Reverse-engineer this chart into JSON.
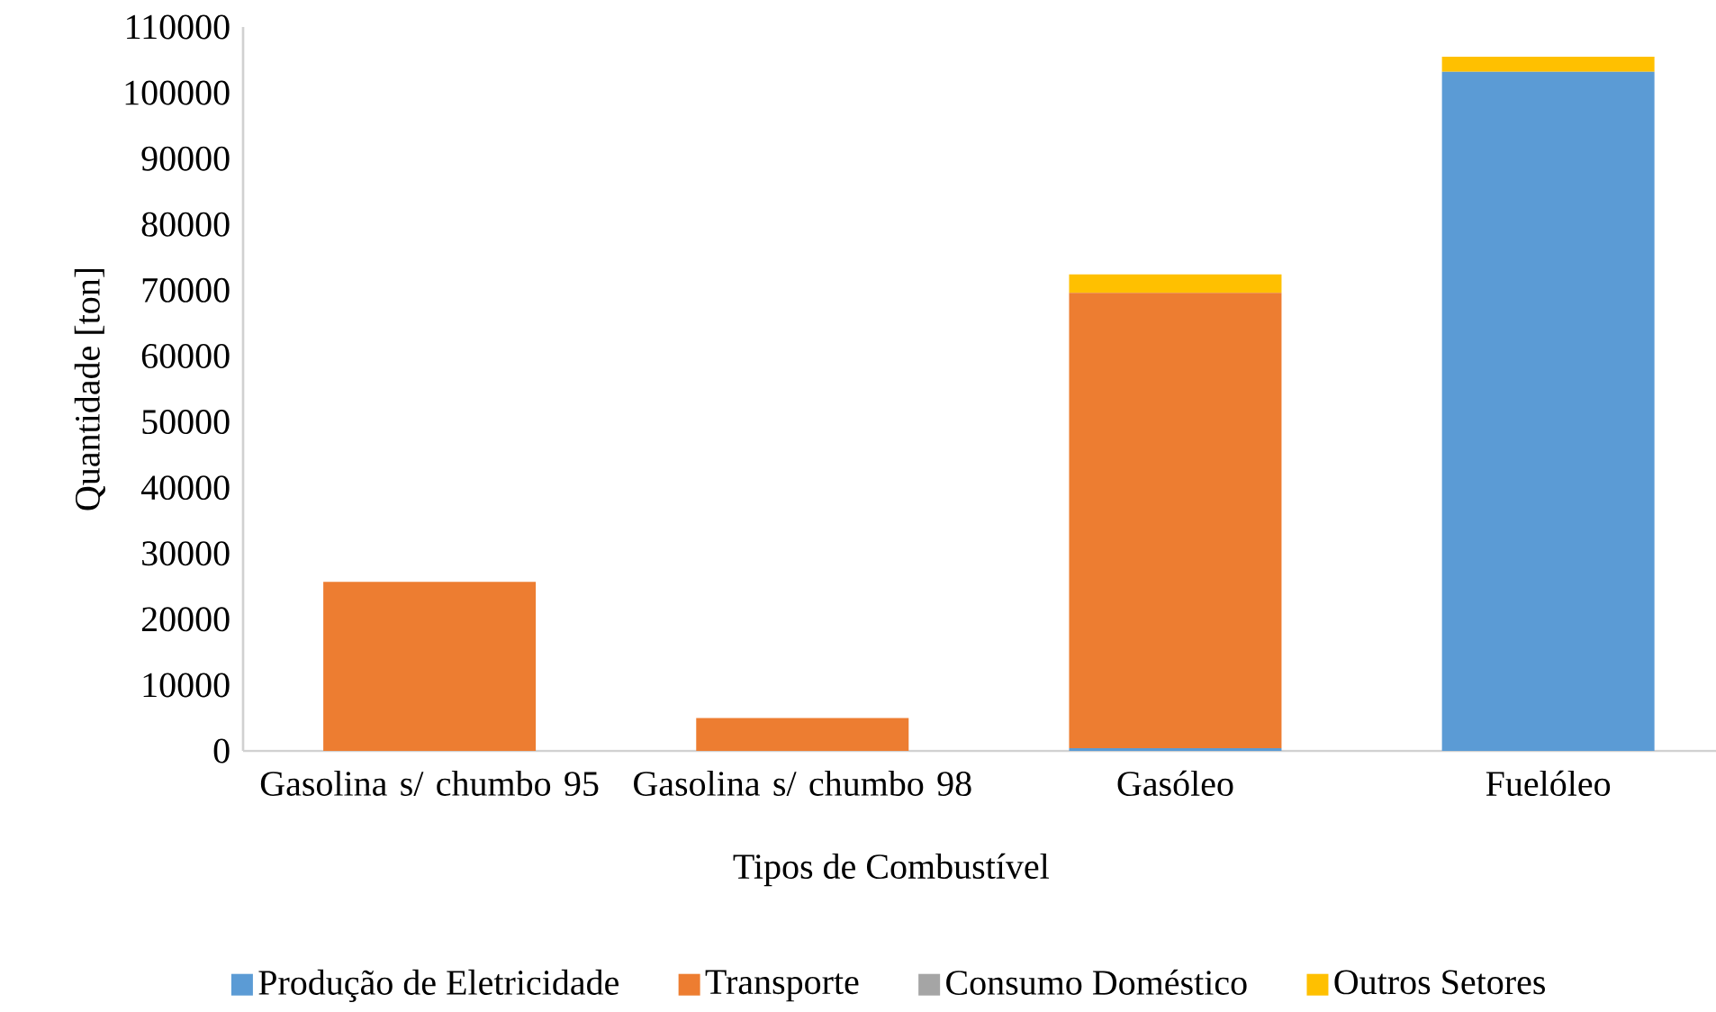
{
  "chart_data": {
    "type": "bar",
    "stacked": true,
    "xlabel": "Tipos de Combustível",
    "ylabel": "Quantidade  [ton]",
    "categories": [
      "Gasolina s/ chumbo 95",
      "Gasolina s/ chumbo 98",
      "Gasóleo",
      "Fuelóleo"
    ],
    "series": [
      {
        "name": "Produção de Eletricidade",
        "color": "#5b9bd5",
        "values": [
          0,
          0,
          400,
          103200
        ]
      },
      {
        "name": "Transporte",
        "color": "#ed7d31",
        "values": [
          25700,
          5000,
          69200,
          0
        ]
      },
      {
        "name": "Consumo Doméstico",
        "color": "#a5a5a5",
        "values": [
          0,
          0,
          0,
          0
        ]
      },
      {
        "name": "Outros Setores",
        "color": "#ffc000",
        "values": [
          0,
          0,
          2800,
          2300
        ]
      }
    ],
    "ylim": [
      0,
      110000
    ],
    "yticks": [
      0,
      10000,
      20000,
      30000,
      40000,
      50000,
      60000,
      70000,
      80000,
      90000,
      100000,
      110000
    ],
    "grid": false,
    "legend": "bottom"
  }
}
